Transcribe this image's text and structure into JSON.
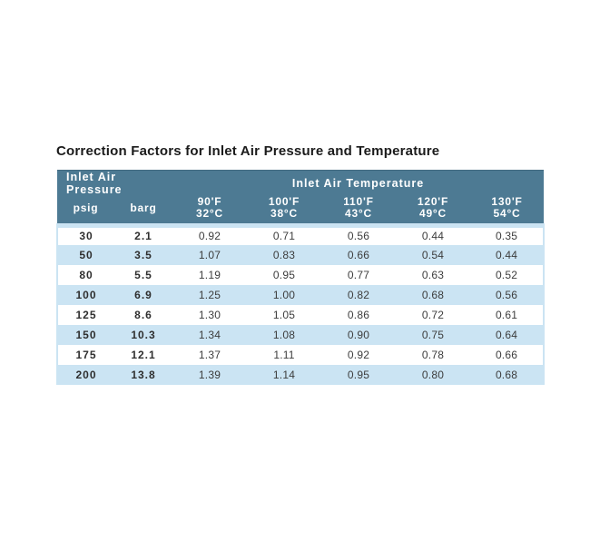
{
  "colors": {
    "header_bg": "#4d7a93",
    "header_text": "#ffffff",
    "row_alt": "#cbe4f3",
    "body_text": "#3c3c3c",
    "title_text": "#1b1b1b"
  },
  "title": "Correction Factors for Inlet Air Pressure and Temperature",
  "table": {
    "group_headers": {
      "pressure": "Inlet Air Pressure",
      "temperature": "Inlet Air Temperature"
    },
    "pressure_columns": [
      "psig",
      "barg"
    ],
    "temperature_columns": [
      {
        "fahrenheit": "90'F",
        "celsius": "32°C"
      },
      {
        "fahrenheit": "100'F",
        "celsius": "38°C"
      },
      {
        "fahrenheit": "110'F",
        "celsius": "43°C"
      },
      {
        "fahrenheit": "120'F",
        "celsius": "49°C"
      },
      {
        "fahrenheit": "130'F",
        "celsius": "54°C"
      }
    ],
    "rows": [
      [
        "30",
        "2.1",
        "0.92",
        "0.71",
        "0.56",
        "0.44",
        "0.35"
      ],
      [
        "50",
        "3.5",
        "1.07",
        "0.83",
        "0.66",
        "0.54",
        "0.44"
      ],
      [
        "80",
        "5.5",
        "1.19",
        "0.95",
        "0.77",
        "0.63",
        "0.52"
      ],
      [
        "100",
        "6.9",
        "1.25",
        "1.00",
        "0.82",
        "0.68",
        "0.56"
      ],
      [
        "125",
        "8.6",
        "1.30",
        "1.05",
        "0.86",
        "0.72",
        "0.61"
      ],
      [
        "150",
        "10.3",
        "1.34",
        "1.08",
        "0.90",
        "0.75",
        "0.64"
      ],
      [
        "175",
        "12.1",
        "1.37",
        "1.11",
        "0.92",
        "0.78",
        "0.66"
      ],
      [
        "200",
        "13.8",
        "1.39",
        "1.14",
        "0.95",
        "0.80",
        "0.68"
      ]
    ]
  }
}
